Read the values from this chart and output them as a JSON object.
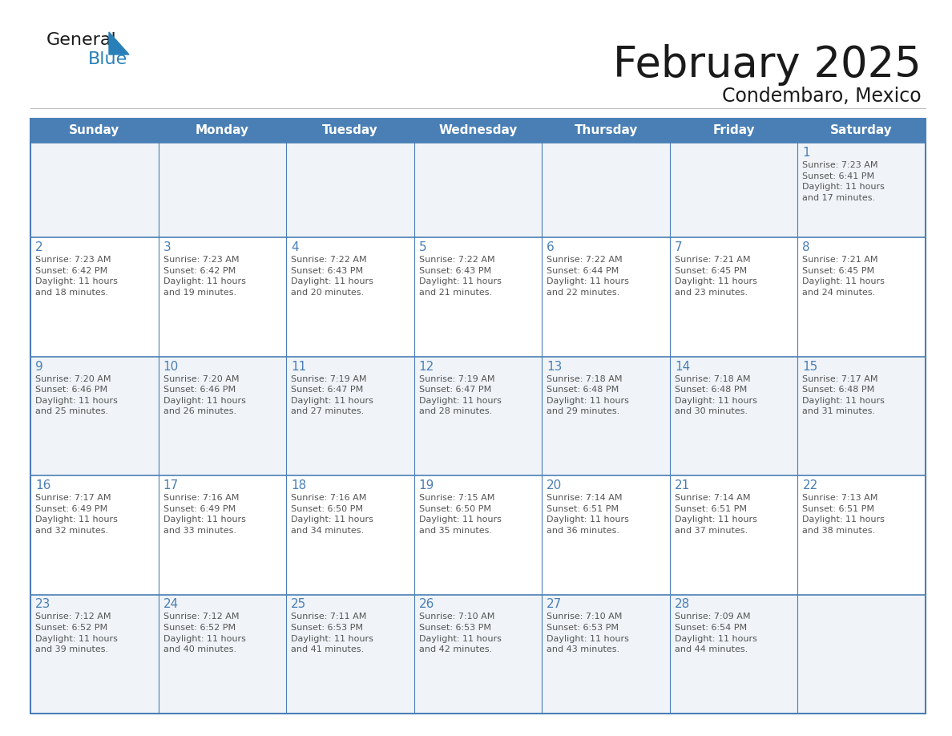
{
  "title": "February 2025",
  "subtitle": "Condembaro, Mexico",
  "header_bg": "#4a7fb5",
  "header_text_color": "#ffffff",
  "cell_border_color": "#4a7fb5",
  "day_number_color": "#4a7fb5",
  "info_text_color": "#555555",
  "background_color": "#ffffff",
  "cell_bg_light": "#f0f4f8",
  "cell_bg_white": "#ffffff",
  "days_of_week": [
    "Sunday",
    "Monday",
    "Tuesday",
    "Wednesday",
    "Thursday",
    "Friday",
    "Saturday"
  ],
  "weeks": [
    [
      {
        "day": "",
        "info": ""
      },
      {
        "day": "",
        "info": ""
      },
      {
        "day": "",
        "info": ""
      },
      {
        "day": "",
        "info": ""
      },
      {
        "day": "",
        "info": ""
      },
      {
        "day": "",
        "info": ""
      },
      {
        "day": "1",
        "info": "Sunrise: 7:23 AM\nSunset: 6:41 PM\nDaylight: 11 hours\nand 17 minutes."
      }
    ],
    [
      {
        "day": "2",
        "info": "Sunrise: 7:23 AM\nSunset: 6:42 PM\nDaylight: 11 hours\nand 18 minutes."
      },
      {
        "day": "3",
        "info": "Sunrise: 7:23 AM\nSunset: 6:42 PM\nDaylight: 11 hours\nand 19 minutes."
      },
      {
        "day": "4",
        "info": "Sunrise: 7:22 AM\nSunset: 6:43 PM\nDaylight: 11 hours\nand 20 minutes."
      },
      {
        "day": "5",
        "info": "Sunrise: 7:22 AM\nSunset: 6:43 PM\nDaylight: 11 hours\nand 21 minutes."
      },
      {
        "day": "6",
        "info": "Sunrise: 7:22 AM\nSunset: 6:44 PM\nDaylight: 11 hours\nand 22 minutes."
      },
      {
        "day": "7",
        "info": "Sunrise: 7:21 AM\nSunset: 6:45 PM\nDaylight: 11 hours\nand 23 minutes."
      },
      {
        "day": "8",
        "info": "Sunrise: 7:21 AM\nSunset: 6:45 PM\nDaylight: 11 hours\nand 24 minutes."
      }
    ],
    [
      {
        "day": "9",
        "info": "Sunrise: 7:20 AM\nSunset: 6:46 PM\nDaylight: 11 hours\nand 25 minutes."
      },
      {
        "day": "10",
        "info": "Sunrise: 7:20 AM\nSunset: 6:46 PM\nDaylight: 11 hours\nand 26 minutes."
      },
      {
        "day": "11",
        "info": "Sunrise: 7:19 AM\nSunset: 6:47 PM\nDaylight: 11 hours\nand 27 minutes."
      },
      {
        "day": "12",
        "info": "Sunrise: 7:19 AM\nSunset: 6:47 PM\nDaylight: 11 hours\nand 28 minutes."
      },
      {
        "day": "13",
        "info": "Sunrise: 7:18 AM\nSunset: 6:48 PM\nDaylight: 11 hours\nand 29 minutes."
      },
      {
        "day": "14",
        "info": "Sunrise: 7:18 AM\nSunset: 6:48 PM\nDaylight: 11 hours\nand 30 minutes."
      },
      {
        "day": "15",
        "info": "Sunrise: 7:17 AM\nSunset: 6:48 PM\nDaylight: 11 hours\nand 31 minutes."
      }
    ],
    [
      {
        "day": "16",
        "info": "Sunrise: 7:17 AM\nSunset: 6:49 PM\nDaylight: 11 hours\nand 32 minutes."
      },
      {
        "day": "17",
        "info": "Sunrise: 7:16 AM\nSunset: 6:49 PM\nDaylight: 11 hours\nand 33 minutes."
      },
      {
        "day": "18",
        "info": "Sunrise: 7:16 AM\nSunset: 6:50 PM\nDaylight: 11 hours\nand 34 minutes."
      },
      {
        "day": "19",
        "info": "Sunrise: 7:15 AM\nSunset: 6:50 PM\nDaylight: 11 hours\nand 35 minutes."
      },
      {
        "day": "20",
        "info": "Sunrise: 7:14 AM\nSunset: 6:51 PM\nDaylight: 11 hours\nand 36 minutes."
      },
      {
        "day": "21",
        "info": "Sunrise: 7:14 AM\nSunset: 6:51 PM\nDaylight: 11 hours\nand 37 minutes."
      },
      {
        "day": "22",
        "info": "Sunrise: 7:13 AM\nSunset: 6:51 PM\nDaylight: 11 hours\nand 38 minutes."
      }
    ],
    [
      {
        "day": "23",
        "info": "Sunrise: 7:12 AM\nSunset: 6:52 PM\nDaylight: 11 hours\nand 39 minutes."
      },
      {
        "day": "24",
        "info": "Sunrise: 7:12 AM\nSunset: 6:52 PM\nDaylight: 11 hours\nand 40 minutes."
      },
      {
        "day": "25",
        "info": "Sunrise: 7:11 AM\nSunset: 6:53 PM\nDaylight: 11 hours\nand 41 minutes."
      },
      {
        "day": "26",
        "info": "Sunrise: 7:10 AM\nSunset: 6:53 PM\nDaylight: 11 hours\nand 42 minutes."
      },
      {
        "day": "27",
        "info": "Sunrise: 7:10 AM\nSunset: 6:53 PM\nDaylight: 11 hours\nand 43 minutes."
      },
      {
        "day": "28",
        "info": "Sunrise: 7:09 AM\nSunset: 6:54 PM\nDaylight: 11 hours\nand 44 minutes."
      },
      {
        "day": "",
        "info": ""
      }
    ]
  ]
}
